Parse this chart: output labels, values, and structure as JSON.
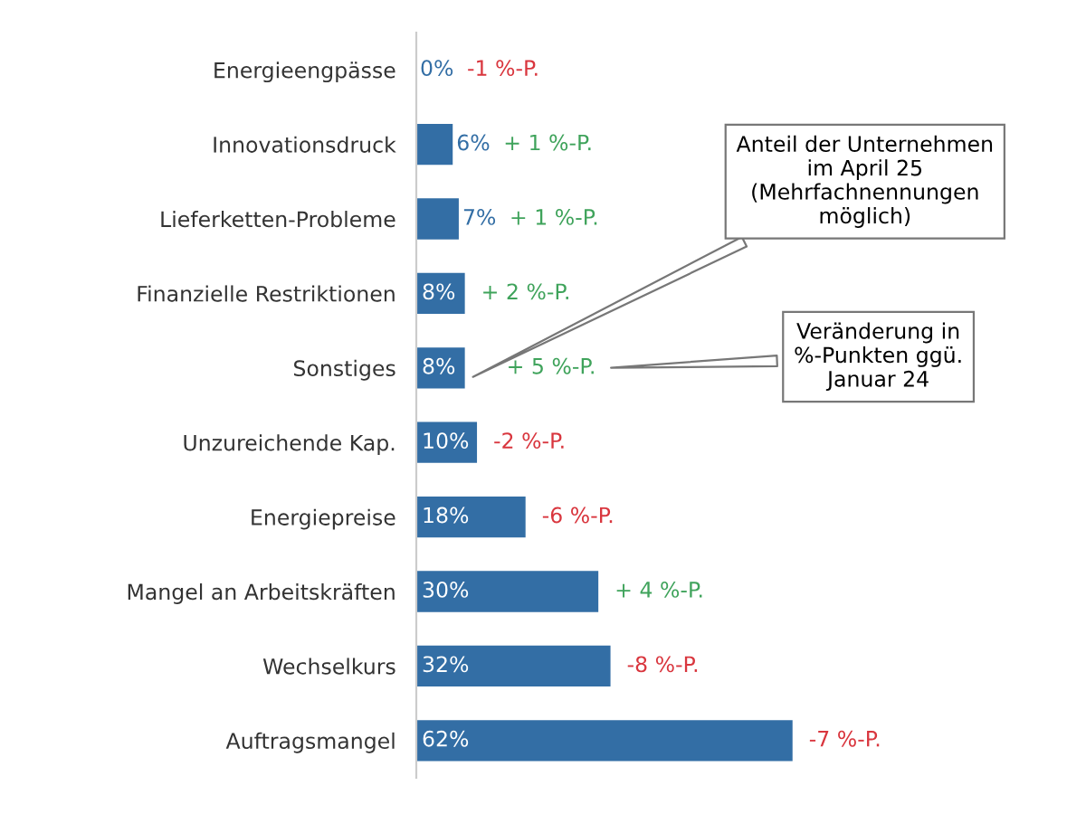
{
  "chart_data": {
    "type": "bar",
    "orientation": "horizontal",
    "categories": [
      "Energieengpässe",
      "Innovationsdruck",
      "Lieferketten-Probleme",
      "Finanzielle Restriktionen",
      "Sonstiges",
      "Unzureichende Kap.",
      "Energiepreise",
      "Mangel an Arbeitskräften",
      "Wechselkurs",
      "Auftragsmangel"
    ],
    "values": [
      0,
      6,
      7,
      8,
      8,
      10,
      18,
      30,
      32,
      62
    ],
    "value_labels": [
      "0%",
      "6%",
      "7%",
      "8%",
      "8%",
      "10%",
      "18%",
      "30%",
      "32%",
      "62%"
    ],
    "color": "#336ea5",
    "tick_labels": "y",
    "annotations": [
      "-1 %-P.",
      "+ 1 %-P.",
      "+ 1 %-P.",
      "+ 2 %-P.",
      "+ 5 %-P.",
      "-2 %-P.",
      "-6 %-P.",
      "+ 4 %-P.",
      "-8 %-P.",
      "-7 %-P.",
      "Anteil der Unternehmen\nim April 25\n(Mehrfachnennungen\nmöglich)",
      "Veränderung in\n%-Punkten ggü.\nJanuar 24"
    ]
  }
}
